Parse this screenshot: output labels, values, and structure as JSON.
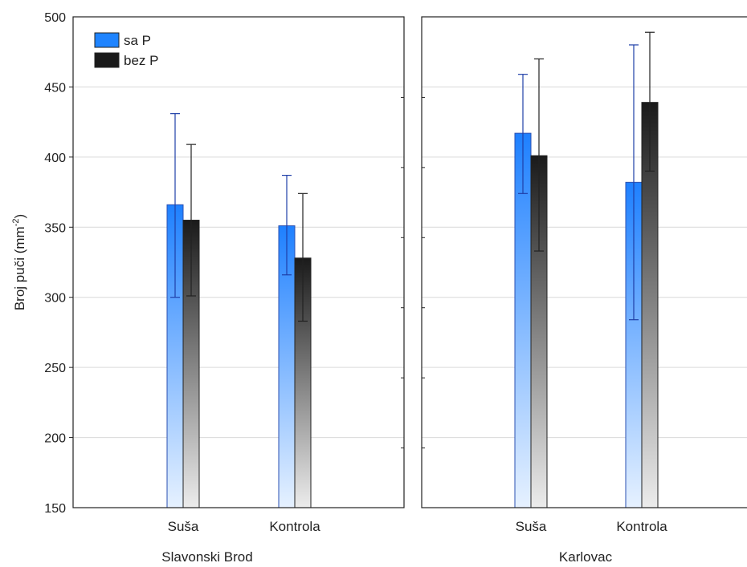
{
  "chart_data": {
    "type": "bar",
    "ylabel": "Broj puči (mm",
    "ylabel_sup": "-2",
    "ylabel_end": ")",
    "ylim": [
      150,
      500
    ],
    "yticks": [
      150,
      200,
      250,
      300,
      350,
      400,
      450,
      500
    ],
    "grid": "horizontal",
    "legend_position": "top-left",
    "series_names": [
      "sa P",
      "bez P"
    ],
    "series_colors": [
      "#1f84ff",
      "#1a1a1a"
    ],
    "panels": [
      {
        "name": "Slavonski Brod",
        "categories": [
          "Suša",
          "Kontrola"
        ],
        "series": [
          {
            "name": "sa P",
            "values": [
              366,
              351
            ],
            "err_low": [
              300,
              316
            ],
            "err_high": [
              431,
              387
            ]
          },
          {
            "name": "bez P",
            "values": [
              355,
              328
            ],
            "err_low": [
              301,
              283
            ],
            "err_high": [
              409,
              374
            ]
          }
        ]
      },
      {
        "name": "Karlovac",
        "categories": [
          "Suša",
          "Kontrola"
        ],
        "series": [
          {
            "name": "sa P",
            "values": [
              417,
              382
            ],
            "err_low": [
              374,
              284
            ],
            "err_high": [
              459,
              480
            ]
          },
          {
            "name": "bez P",
            "values": [
              401,
              439
            ],
            "err_low": [
              333,
              390
            ],
            "err_high": [
              470,
              489
            ]
          }
        ]
      }
    ]
  }
}
